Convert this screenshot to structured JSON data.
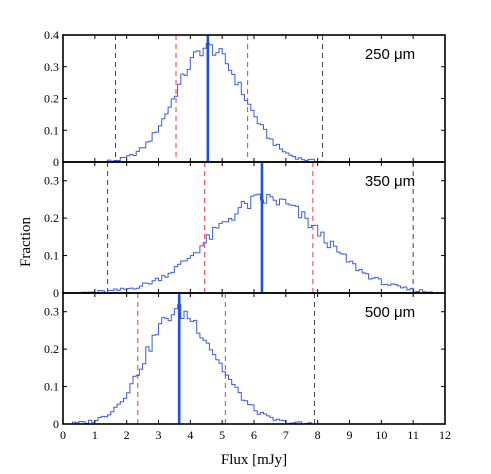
{
  "figure": {
    "ylabel": "Fraction",
    "xlabel": "Flux [mJy]",
    "x_ticks": [
      "0",
      "1",
      "2",
      "3",
      "4",
      "5",
      "6",
      "7",
      "8",
      "9",
      "10",
      "11",
      "12"
    ]
  },
  "colors": {
    "histogram": "#3b5bdb",
    "median": "#1f4fe0",
    "inner_band": "#ee3a3a",
    "outer_band": "#444444"
  },
  "chart_data": [
    {
      "type": "histogram",
      "label": "250 μm",
      "xlim": [
        0,
        12
      ],
      "ylim": [
        0,
        0.4
      ],
      "y_ticks": [
        "0.1",
        "0.2",
        "0.3",
        "0.4"
      ],
      "y_tick_values": [
        0.1,
        0.2,
        0.3,
        0.4
      ],
      "median": 4.55,
      "inner_lines": [
        3.55,
        5.8
      ],
      "outer_lines": [
        1.65,
        8.15
      ],
      "profile": {
        "peak_x": 4.55,
        "peak_y": 0.36,
        "sigma_left": 1.0,
        "sigma_right": 1.1,
        "range": [
          1.4,
          8.3
        ]
      }
    },
    {
      "type": "histogram",
      "label": "350 μm",
      "xlim": [
        0,
        12
      ],
      "ylim": [
        0,
        0.35
      ],
      "y_ticks": [
        "0.1",
        "0.2",
        "0.3"
      ],
      "y_tick_values": [
        0.1,
        0.2,
        0.3
      ],
      "median": 6.25,
      "inner_lines": [
        4.45,
        7.85
      ],
      "outer_lines": [
        1.4,
        11.0
      ],
      "profile": {
        "peak_x": 6.4,
        "peak_y": 0.25,
        "sigma_left": 1.75,
        "sigma_right": 1.75,
        "range": [
          0.6,
          11.8
        ]
      }
    },
    {
      "type": "histogram",
      "label": "500 μm",
      "xlim": [
        0,
        12
      ],
      "ylim": [
        0,
        0.35
      ],
      "y_ticks": [
        "0.1",
        "0.2",
        "0.3"
      ],
      "y_tick_values": [
        0.1,
        0.2,
        0.3
      ],
      "median": 3.65,
      "inner_lines": [
        2.35,
        5.1
      ],
      "outer_lines": [
        7.9
      ],
      "profile": {
        "peak_x": 3.6,
        "peak_y": 0.3,
        "sigma_left": 1.0,
        "sigma_right": 1.2,
        "range": [
          0.0,
          7.9
        ]
      }
    }
  ]
}
